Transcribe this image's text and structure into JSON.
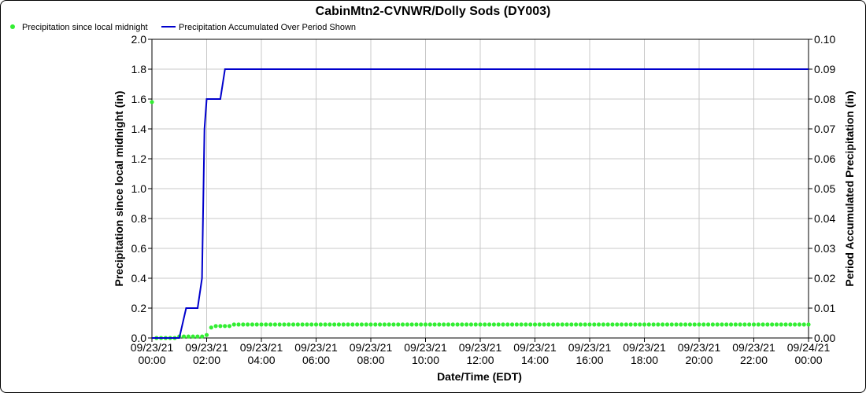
{
  "chart_data": {
    "type": "line",
    "title": "CabinMtn2-CVNWR/Dolly Sods (DY003)",
    "xlabel": "Date/Time (EDT)",
    "ylabel_left": "Precipitation since local midnight (in)",
    "ylabel_right": "Period Accumulated Precipitation (in)",
    "ylim_left": [
      0,
      2.0
    ],
    "ylim_right": [
      0,
      0.1
    ],
    "xlim_hours": [
      0,
      24
    ],
    "grid": true,
    "legend_position": "top-left",
    "y_ticks_left": [
      "0.0",
      "0.2",
      "0.4",
      "0.6",
      "0.8",
      "1.0",
      "1.2",
      "1.4",
      "1.6",
      "1.8",
      "2.0"
    ],
    "y_ticks_right": [
      "0.00",
      "0.01",
      "0.02",
      "0.03",
      "0.04",
      "0.05",
      "0.06",
      "0.07",
      "0.08",
      "0.09",
      "0.10"
    ],
    "x_ticks": [
      {
        "date": "09/23/21",
        "time": "00:00"
      },
      {
        "date": "09/23/21",
        "time": "02:00"
      },
      {
        "date": "09/23/21",
        "time": "04:00"
      },
      {
        "date": "09/23/21",
        "time": "06:00"
      },
      {
        "date": "09/23/21",
        "time": "08:00"
      },
      {
        "date": "09/23/21",
        "time": "10:00"
      },
      {
        "date": "09/23/21",
        "time": "12:00"
      },
      {
        "date": "09/23/21",
        "time": "14:00"
      },
      {
        "date": "09/23/21",
        "time": "16:00"
      },
      {
        "date": "09/23/21",
        "time": "18:00"
      },
      {
        "date": "09/23/21",
        "time": "20:00"
      },
      {
        "date": "09/23/21",
        "time": "22:00"
      },
      {
        "date": "09/24/21",
        "time": "00:00"
      }
    ],
    "series": [
      {
        "name": "Precipitation since local midnight",
        "axis": "left",
        "style": "points",
        "color": "#33ee33",
        "x_start_time": "09/23/21 00:00",
        "x_step_minutes": 10,
        "values": [
          1.58,
          0.0,
          0.0,
          0.0,
          0.0,
          0.0,
          0.01,
          0.01,
          0.01,
          0.01,
          0.01,
          0.01,
          0.02,
          0.07,
          0.08,
          0.08,
          0.08,
          0.08,
          0.09,
          0.09,
          0.09,
          0.09,
          0.09,
          0.09,
          0.09,
          0.09,
          0.09,
          0.09,
          0.09,
          0.09,
          0.09,
          0.09,
          0.09,
          0.09,
          0.09,
          0.09,
          0.09,
          0.09,
          0.09,
          0.09,
          0.09,
          0.09,
          0.09,
          0.09,
          0.09,
          0.09,
          0.09,
          0.09,
          0.09,
          0.09,
          0.09,
          0.09,
          0.09,
          0.09,
          0.09,
          0.09,
          0.09,
          0.09,
          0.09,
          0.09,
          0.09,
          0.09,
          0.09,
          0.09,
          0.09,
          0.09,
          0.09,
          0.09,
          0.09,
          0.09,
          0.09,
          0.09,
          0.09,
          0.09,
          0.09,
          0.09,
          0.09,
          0.09,
          0.09,
          0.09,
          0.09,
          0.09,
          0.09,
          0.09,
          0.09,
          0.09,
          0.09,
          0.09,
          0.09,
          0.09,
          0.09,
          0.09,
          0.09,
          0.09,
          0.09,
          0.09,
          0.09,
          0.09,
          0.09,
          0.09,
          0.09,
          0.09,
          0.09,
          0.09,
          0.09,
          0.09,
          0.09,
          0.09,
          0.09,
          0.09,
          0.09,
          0.09,
          0.09,
          0.09,
          0.09,
          0.09,
          0.09,
          0.09,
          0.09,
          0.09,
          0.09,
          0.09,
          0.09,
          0.09,
          0.09,
          0.09,
          0.09,
          0.09,
          0.09,
          0.09,
          0.09,
          0.09,
          0.09,
          0.09,
          0.09,
          0.09,
          0.09,
          0.09,
          0.09,
          0.09,
          0.09,
          0.09,
          0.09,
          0.09,
          0.09
        ]
      },
      {
        "name": "Precipitation Accumulated Over Period Shown",
        "axis": "right",
        "style": "line",
        "color": "#0000cc",
        "x_hours": [
          0,
          0.5,
          0.5,
          1.0,
          1.0,
          1.25,
          1.25,
          1.67,
          1.67,
          1.83,
          1.92,
          2.0,
          2.08,
          2.17,
          2.33,
          2.5,
          2.67,
          2.83,
          24.0
        ],
        "values": [
          0,
          0,
          0,
          0,
          0,
          0.01,
          0.01,
          0.01,
          0.01,
          0.02,
          0.07,
          0.08,
          0.08,
          0.08,
          0.08,
          0.08,
          0.09,
          0.09,
          0.09
        ]
      }
    ]
  }
}
